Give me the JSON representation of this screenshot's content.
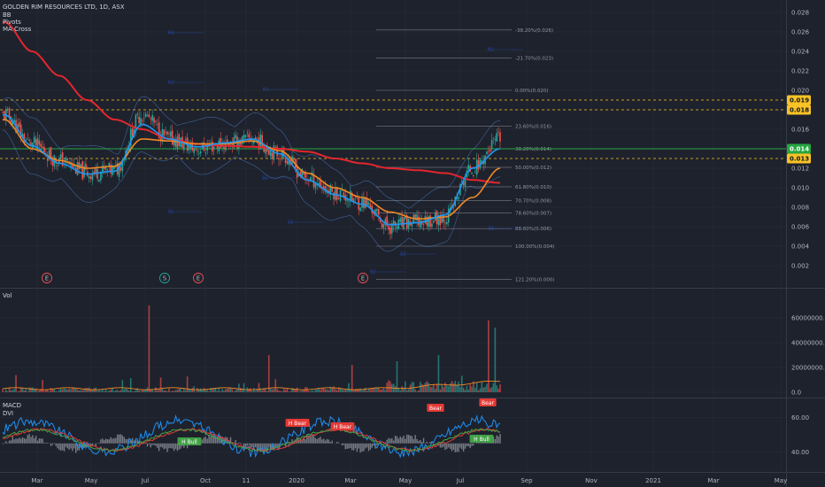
{
  "header": {
    "title": "GOLDEN RIM RESOURCES LTD, 1D, ASX",
    "indicators": [
      "BB",
      "Pivots",
      "MA Cross"
    ]
  },
  "price_axis_ticks": [
    "0.028",
    "0.026",
    "0.024",
    "0.022",
    "0.020",
    "0.018",
    "0.016",
    "0.014",
    "0.012",
    "0.010",
    "0.008",
    "0.006",
    "0.004",
    "0.002"
  ],
  "price_badges": [
    {
      "label": "0.019",
      "value": 0.019,
      "bg": "#f7c325",
      "fg": "#131722"
    },
    {
      "label": "0.018",
      "value": 0.018,
      "bg": "#f7c325",
      "fg": "#131722"
    },
    {
      "label": "0.014",
      "value": 0.014,
      "bg": "#26a641",
      "fg": "#ffffff"
    },
    {
      "label": "0.013",
      "value": 0.013,
      "bg": "#f7c325",
      "fg": "#131722"
    }
  ],
  "fib_levels": [
    {
      "label": "-38.20%(0.026)",
      "value": 0.0262
    },
    {
      "label": "-21.70%(0.023)",
      "value": 0.0233
    },
    {
      "label": "0.00%(0.020)",
      "value": 0.02
    },
    {
      "label": "23.60%(0.016)",
      "value": 0.0163
    },
    {
      "label": "38.20%(0.014)",
      "value": 0.014
    },
    {
      "label": "50.00%(0.012)",
      "value": 0.0121
    },
    {
      "label": "61.80%(0.010)",
      "value": 0.0101
    },
    {
      "label": "70.70%(0.008)",
      "value": 0.0087
    },
    {
      "label": "78.60%(0.007)",
      "value": 0.0074
    },
    {
      "label": "88.60%(0.006)",
      "value": 0.0058
    },
    {
      "label": "100.00%(0.004)",
      "value": 0.004
    },
    {
      "label": "121.20%(0.000)",
      "value": 0.0006
    }
  ],
  "events": [
    "E",
    "S",
    "E",
    "E"
  ],
  "volume_pane": {
    "label": "Vol",
    "ticks": [
      "60000000.0",
      "40000000.0",
      "20000000.0",
      "0.0"
    ]
  },
  "macd_pane": {
    "labels": [
      "MACD",
      "DVI"
    ],
    "ticks": [
      "60.00",
      "40.00"
    ],
    "tags": [
      {
        "text": "Bear",
        "type": "bear"
      },
      {
        "text": "Bear",
        "type": "bear"
      },
      {
        "text": "H Bear",
        "type": "bear"
      },
      {
        "text": "H Bear",
        "type": "bear"
      },
      {
        "text": "H Bull",
        "type": "bull"
      },
      {
        "text": "H Bull",
        "type": "bull"
      }
    ]
  },
  "x_axis_labels": [
    "Mar",
    "May",
    "Jul",
    "Oct",
    "11",
    "2020",
    "Mar",
    "May",
    "Jul",
    "Sep",
    "Nov",
    "2021",
    "Mar",
    "May"
  ],
  "colors": {
    "background": "#1e222d",
    "grid": "#2a2e39",
    "up": "#26a69a",
    "down": "#ef5350",
    "ma_long": "#e3262e",
    "ma_mid": "#f08a24",
    "ma_short": "#2196f3",
    "bb": "#5b9cf6",
    "fib": "#787b86",
    "support": "#26a641",
    "resistance": "#f7c325"
  },
  "chart_data": {
    "type": "candlestick",
    "title": "GOLDEN RIM RESOURCES LTD, 1D, ASX",
    "ylim": [
      0.0,
      0.029
    ],
    "series": [
      {
        "name": "close",
        "x": [
          "Feb",
          "Mar",
          "Apr",
          "May",
          "Jun",
          "Jul",
          "Aug",
          "Sep",
          "Oct",
          "Nov",
          "Dec",
          "2020",
          "Feb",
          "Mar",
          "Apr",
          "May",
          "Jun",
          "Jul",
          "Aug"
        ],
        "values": [
          0.0175,
          0.0145,
          0.0128,
          0.0115,
          0.0118,
          0.0175,
          0.015,
          0.014,
          0.0145,
          0.015,
          0.0135,
          0.011,
          0.0095,
          0.0085,
          0.006,
          0.0065,
          0.007,
          0.012,
          0.015
        ]
      }
    ],
    "ma_long": [
      0.027,
      0.024,
      0.0215,
      0.019,
      0.017,
      0.016,
      0.015,
      0.0145,
      0.0143,
      0.0142,
      0.014,
      0.0137,
      0.013,
      0.0125,
      0.012,
      0.0118,
      0.0115,
      0.0108,
      0.0105
    ],
    "ma_mid": [
      0.017,
      0.014,
      0.0128,
      0.012,
      0.0122,
      0.015,
      0.0148,
      0.0145,
      0.0145,
      0.0148,
      0.0138,
      0.0115,
      0.01,
      0.009,
      0.0075,
      0.0068,
      0.007,
      0.009,
      0.012
    ],
    "ma_short": [
      0.0175,
      0.0143,
      0.0125,
      0.0114,
      0.0117,
      0.0165,
      0.015,
      0.0142,
      0.0146,
      0.015,
      0.0135,
      0.0108,
      0.0093,
      0.0083,
      0.0062,
      0.0064,
      0.0072,
      0.012,
      0.014
    ],
    "volume": {
      "ylim": [
        0,
        70000000
      ],
      "spikes": [
        70000000,
        30000000,
        22000000,
        25000000,
        30000000,
        58000000,
        52000000
      ]
    },
    "macd": {
      "ylim": [
        30,
        70
      ]
    }
  }
}
